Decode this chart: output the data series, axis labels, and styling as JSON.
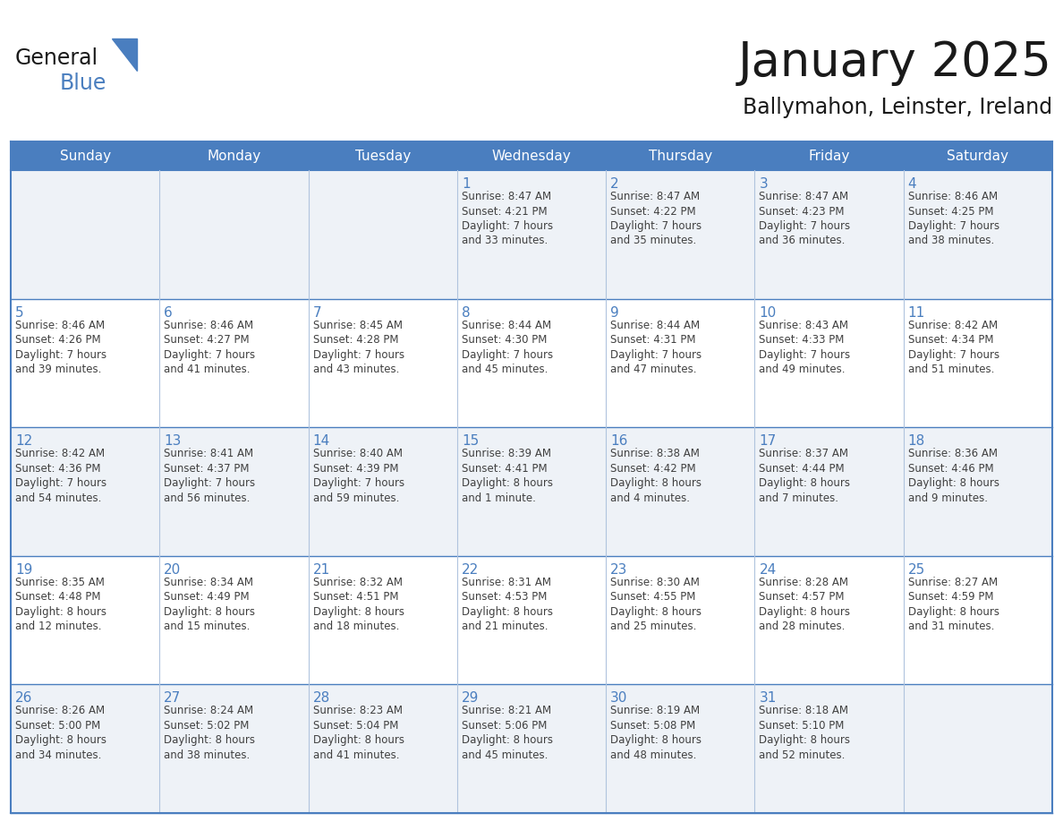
{
  "title": "January 2025",
  "subtitle": "Ballymahon, Leinster, Ireland",
  "days_of_week": [
    "Sunday",
    "Monday",
    "Tuesday",
    "Wednesday",
    "Thursday",
    "Friday",
    "Saturday"
  ],
  "header_bg": "#4a7ebf",
  "header_text": "#ffffff",
  "row_bg_odd": "#eef2f7",
  "row_bg_even": "#ffffff",
  "border_color": "#4a7ebf",
  "grid_color": "#b0c4de",
  "day_number_color": "#4a7ebf",
  "cell_text_color": "#404040",
  "title_color": "#1a1a1a",
  "subtitle_color": "#1a1a1a",
  "general_color": "#1a1a1a",
  "blue_text_color": "#4a7ebf",
  "weeks": [
    [
      {
        "day": "",
        "info": ""
      },
      {
        "day": "",
        "info": ""
      },
      {
        "day": "",
        "info": ""
      },
      {
        "day": "1",
        "info": "Sunrise: 8:47 AM\nSunset: 4:21 PM\nDaylight: 7 hours\nand 33 minutes."
      },
      {
        "day": "2",
        "info": "Sunrise: 8:47 AM\nSunset: 4:22 PM\nDaylight: 7 hours\nand 35 minutes."
      },
      {
        "day": "3",
        "info": "Sunrise: 8:47 AM\nSunset: 4:23 PM\nDaylight: 7 hours\nand 36 minutes."
      },
      {
        "day": "4",
        "info": "Sunrise: 8:46 AM\nSunset: 4:25 PM\nDaylight: 7 hours\nand 38 minutes."
      }
    ],
    [
      {
        "day": "5",
        "info": "Sunrise: 8:46 AM\nSunset: 4:26 PM\nDaylight: 7 hours\nand 39 minutes."
      },
      {
        "day": "6",
        "info": "Sunrise: 8:46 AM\nSunset: 4:27 PM\nDaylight: 7 hours\nand 41 minutes."
      },
      {
        "day": "7",
        "info": "Sunrise: 8:45 AM\nSunset: 4:28 PM\nDaylight: 7 hours\nand 43 minutes."
      },
      {
        "day": "8",
        "info": "Sunrise: 8:44 AM\nSunset: 4:30 PM\nDaylight: 7 hours\nand 45 minutes."
      },
      {
        "day": "9",
        "info": "Sunrise: 8:44 AM\nSunset: 4:31 PM\nDaylight: 7 hours\nand 47 minutes."
      },
      {
        "day": "10",
        "info": "Sunrise: 8:43 AM\nSunset: 4:33 PM\nDaylight: 7 hours\nand 49 minutes."
      },
      {
        "day": "11",
        "info": "Sunrise: 8:42 AM\nSunset: 4:34 PM\nDaylight: 7 hours\nand 51 minutes."
      }
    ],
    [
      {
        "day": "12",
        "info": "Sunrise: 8:42 AM\nSunset: 4:36 PM\nDaylight: 7 hours\nand 54 minutes."
      },
      {
        "day": "13",
        "info": "Sunrise: 8:41 AM\nSunset: 4:37 PM\nDaylight: 7 hours\nand 56 minutes."
      },
      {
        "day": "14",
        "info": "Sunrise: 8:40 AM\nSunset: 4:39 PM\nDaylight: 7 hours\nand 59 minutes."
      },
      {
        "day": "15",
        "info": "Sunrise: 8:39 AM\nSunset: 4:41 PM\nDaylight: 8 hours\nand 1 minute."
      },
      {
        "day": "16",
        "info": "Sunrise: 8:38 AM\nSunset: 4:42 PM\nDaylight: 8 hours\nand 4 minutes."
      },
      {
        "day": "17",
        "info": "Sunrise: 8:37 AM\nSunset: 4:44 PM\nDaylight: 8 hours\nand 7 minutes."
      },
      {
        "day": "18",
        "info": "Sunrise: 8:36 AM\nSunset: 4:46 PM\nDaylight: 8 hours\nand 9 minutes."
      }
    ],
    [
      {
        "day": "19",
        "info": "Sunrise: 8:35 AM\nSunset: 4:48 PM\nDaylight: 8 hours\nand 12 minutes."
      },
      {
        "day": "20",
        "info": "Sunrise: 8:34 AM\nSunset: 4:49 PM\nDaylight: 8 hours\nand 15 minutes."
      },
      {
        "day": "21",
        "info": "Sunrise: 8:32 AM\nSunset: 4:51 PM\nDaylight: 8 hours\nand 18 minutes."
      },
      {
        "day": "22",
        "info": "Sunrise: 8:31 AM\nSunset: 4:53 PM\nDaylight: 8 hours\nand 21 minutes."
      },
      {
        "day": "23",
        "info": "Sunrise: 8:30 AM\nSunset: 4:55 PM\nDaylight: 8 hours\nand 25 minutes."
      },
      {
        "day": "24",
        "info": "Sunrise: 8:28 AM\nSunset: 4:57 PM\nDaylight: 8 hours\nand 28 minutes."
      },
      {
        "day": "25",
        "info": "Sunrise: 8:27 AM\nSunset: 4:59 PM\nDaylight: 8 hours\nand 31 minutes."
      }
    ],
    [
      {
        "day": "26",
        "info": "Sunrise: 8:26 AM\nSunset: 5:00 PM\nDaylight: 8 hours\nand 34 minutes."
      },
      {
        "day": "27",
        "info": "Sunrise: 8:24 AM\nSunset: 5:02 PM\nDaylight: 8 hours\nand 38 minutes."
      },
      {
        "day": "28",
        "info": "Sunrise: 8:23 AM\nSunset: 5:04 PM\nDaylight: 8 hours\nand 41 minutes."
      },
      {
        "day": "29",
        "info": "Sunrise: 8:21 AM\nSunset: 5:06 PM\nDaylight: 8 hours\nand 45 minutes."
      },
      {
        "day": "30",
        "info": "Sunrise: 8:19 AM\nSunset: 5:08 PM\nDaylight: 8 hours\nand 48 minutes."
      },
      {
        "day": "31",
        "info": "Sunrise: 8:18 AM\nSunset: 5:10 PM\nDaylight: 8 hours\nand 52 minutes."
      },
      {
        "day": "",
        "info": ""
      }
    ]
  ]
}
